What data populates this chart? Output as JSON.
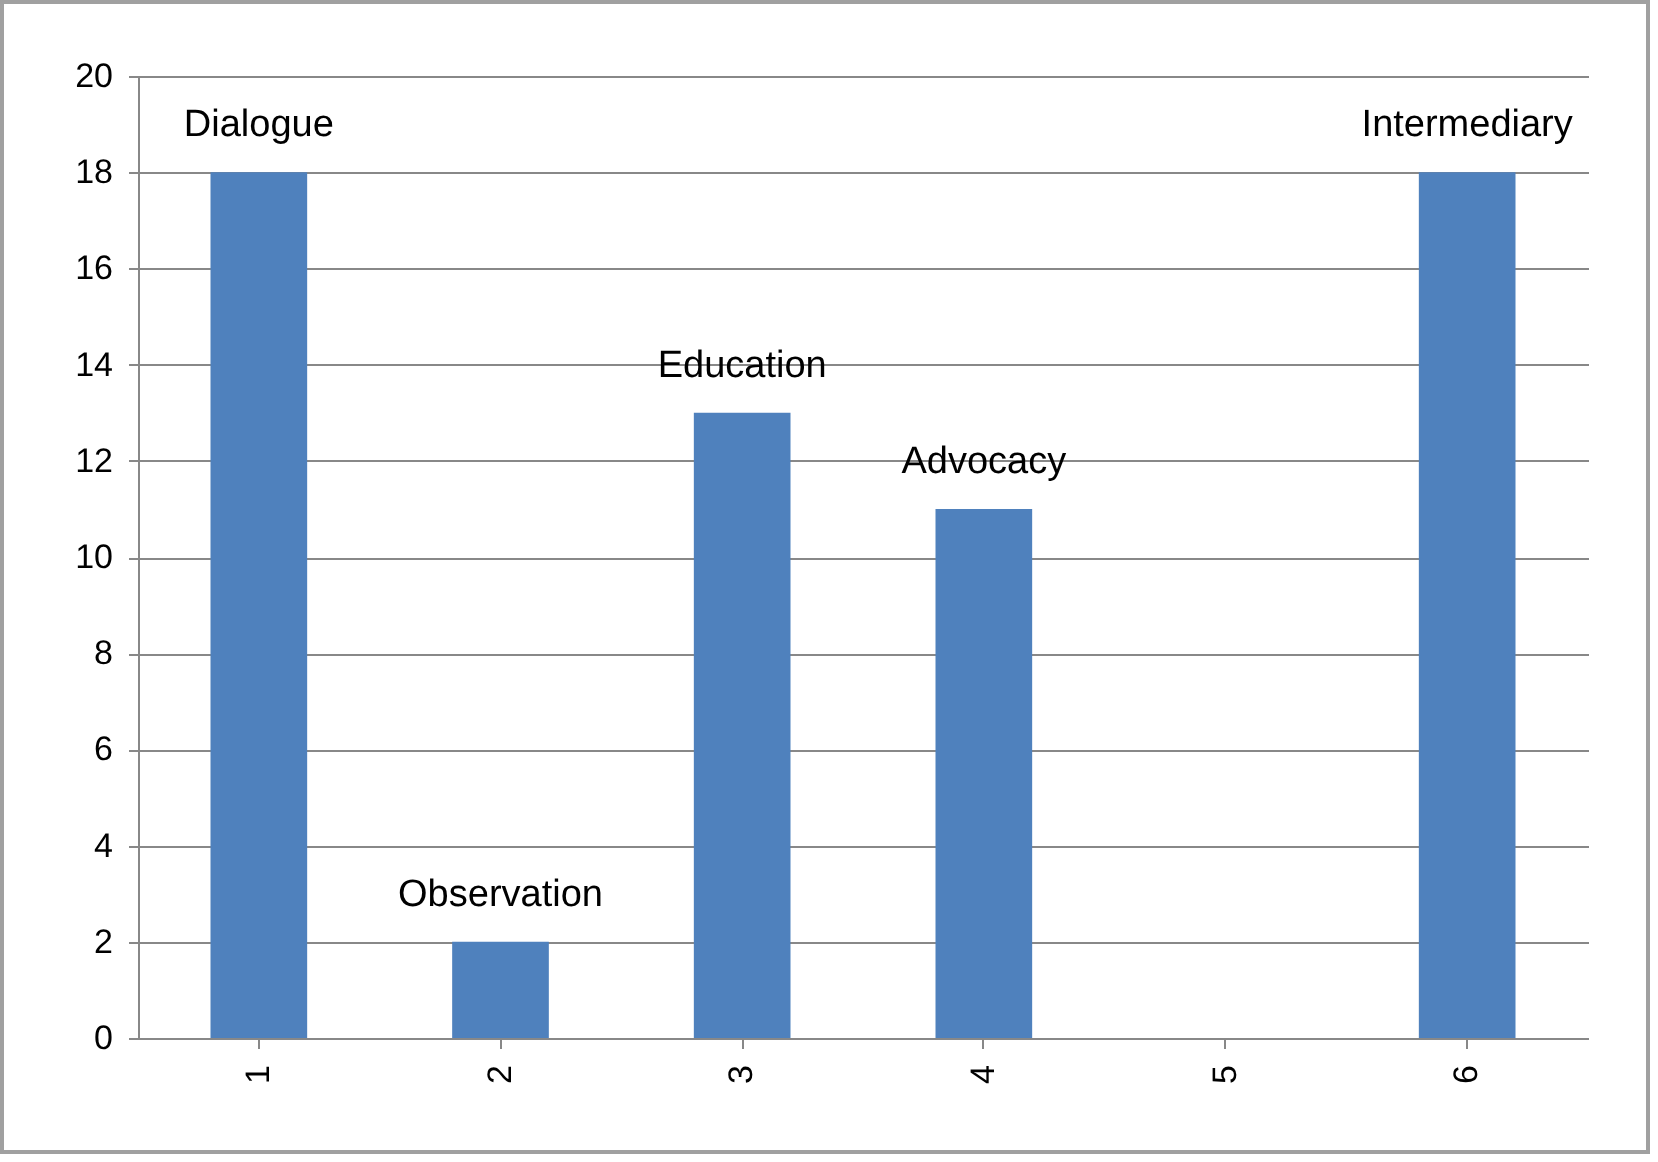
{
  "chart_data": {
    "type": "bar",
    "categories": [
      "1",
      "2",
      "3",
      "4",
      "5",
      "6"
    ],
    "values": [
      18,
      2,
      13,
      11,
      0,
      18
    ],
    "color": "#4f81bd",
    "ylim": [
      0,
      20
    ],
    "yticks": [
      0,
      2,
      4,
      6,
      8,
      10,
      12,
      14,
      16,
      18,
      20
    ],
    "grid": "y",
    "annotations": [
      {
        "text": "Dialogue",
        "x": "1",
        "y": 18
      },
      {
        "text": "Observation",
        "x": "2",
        "y": 2
      },
      {
        "text": "Education",
        "x": "3",
        "y": 13
      },
      {
        "text": "Advocacy",
        "x": "4",
        "y": 11
      },
      {
        "text": "Intermediary",
        "x": "6",
        "y": 18
      }
    ]
  }
}
